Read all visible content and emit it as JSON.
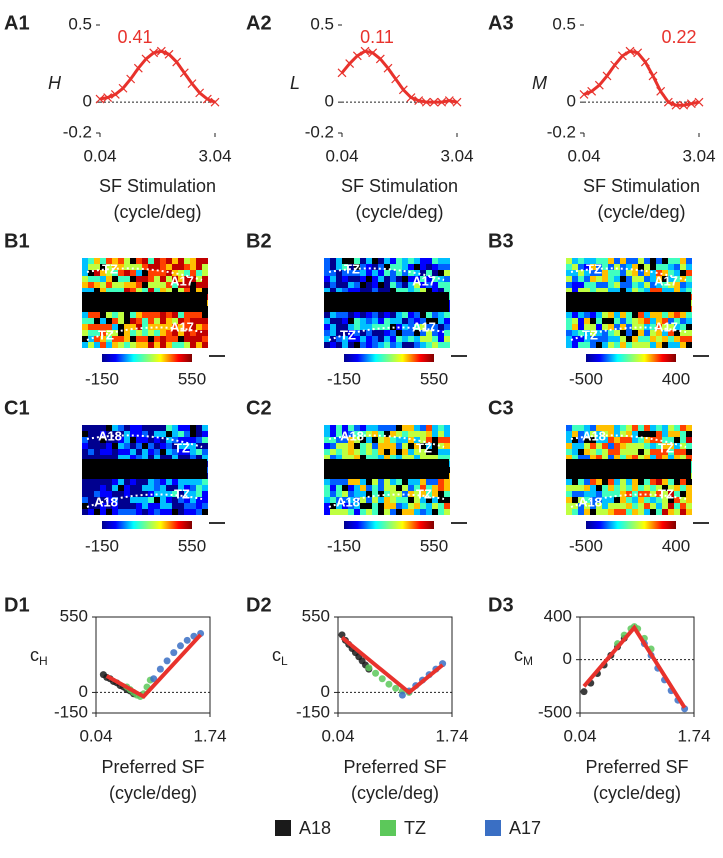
{
  "chart_data": [
    {
      "type": "line",
      "panel": "A1",
      "ylabel": "H",
      "annotation": "0.41",
      "xlabel": "SF Stimulation",
      "xunit": "(cycle/deg)",
      "xlim": [
        0.04,
        3.04
      ],
      "xticks": [
        0.04,
        3.04
      ],
      "ylim": [
        -0.2,
        0.5
      ],
      "yticks": [
        -0.2,
        0,
        0.5
      ],
      "x": [
        0.04,
        0.24,
        0.44,
        0.64,
        0.84,
        1.04,
        1.24,
        1.44,
        1.64,
        1.84,
        2.04,
        2.24,
        2.44,
        2.64,
        2.84,
        3.04
      ],
      "series": [
        {
          "color": "#e8322c",
          "values": [
            0.02,
            0.03,
            0.05,
            0.09,
            0.15,
            0.22,
            0.28,
            0.32,
            0.33,
            0.31,
            0.26,
            0.19,
            0.12,
            0.06,
            0.02,
            0.0
          ]
        }
      ]
    },
    {
      "type": "line",
      "panel": "A2",
      "ylabel": "L",
      "annotation": "0.11",
      "xlabel": "SF Stimulation",
      "xunit": "(cycle/deg)",
      "xlim": [
        0.04,
        3.04
      ],
      "xticks": [
        0.04,
        3.04
      ],
      "ylim": [
        -0.2,
        0.5
      ],
      "yticks": [
        -0.2,
        0,
        0.5
      ],
      "x": [
        0.04,
        0.24,
        0.44,
        0.64,
        0.84,
        1.04,
        1.24,
        1.44,
        1.64,
        1.84,
        2.04,
        2.24,
        2.44,
        2.64,
        2.84,
        3.04
      ],
      "series": [
        {
          "color": "#e8322c",
          "values": [
            0.19,
            0.25,
            0.3,
            0.33,
            0.32,
            0.28,
            0.22,
            0.15,
            0.08,
            0.03,
            0.01,
            0.0,
            0.0,
            0.0,
            0.01,
            0.0
          ]
        }
      ]
    },
    {
      "type": "line",
      "panel": "A3",
      "ylabel": "M",
      "annotation": "0.22",
      "xlabel": "SF Stimulation",
      "xunit": "(cycle/deg)",
      "xlim": [
        0.04,
        3.04
      ],
      "xticks": [
        0.04,
        3.04
      ],
      "ylim": [
        -0.2,
        0.5
      ],
      "yticks": [
        -0.2,
        0,
        0.5
      ],
      "x": [
        0.04,
        0.24,
        0.44,
        0.64,
        0.84,
        1.04,
        1.24,
        1.44,
        1.64,
        1.84,
        2.04,
        2.24,
        2.44,
        2.64,
        2.84,
        3.04
      ],
      "series": [
        {
          "color": "#e8322c",
          "values": [
            0.05,
            0.07,
            0.11,
            0.17,
            0.24,
            0.3,
            0.33,
            0.32,
            0.26,
            0.17,
            0.07,
            0.0,
            -0.02,
            -0.02,
            -0.01,
            0.0
          ]
        }
      ]
    },
    {
      "type": "scatter",
      "panel": "D1",
      "ylabel": "c",
      "ylabel_sub": "H",
      "xlabel": "Preferred SF",
      "xunit": "(cycle/deg)",
      "xlim": [
        0.04,
        1.74
      ],
      "xticks": [
        0.04,
        1.74
      ],
      "ylim": [
        -150,
        550
      ],
      "yticks": [
        -150,
        0,
        550
      ],
      "series": [
        {
          "name": "A18",
          "color": "#1a1a1a",
          "x": [
            0.15,
            0.2,
            0.25,
            0.3,
            0.35,
            0.4,
            0.45,
            0.5,
            0.55,
            0.6
          ],
          "values": [
            130,
            110,
            100,
            80,
            70,
            50,
            40,
            20,
            10,
            -10
          ]
        },
        {
          "name": "TZ",
          "color": "#5cc85a",
          "x": [
            0.5,
            0.55,
            0.6,
            0.65,
            0.7,
            0.75,
            0.8,
            0.85
          ],
          "values": [
            40,
            20,
            0,
            -20,
            -30,
            -10,
            40,
            90
          ]
        },
        {
          "name": "A17",
          "color": "#3a6fc4",
          "x": [
            0.9,
            1.0,
            1.1,
            1.2,
            1.3,
            1.4,
            1.5,
            1.6
          ],
          "values": [
            100,
            170,
            230,
            290,
            340,
            380,
            410,
            430
          ]
        }
      ],
      "fit": {
        "color": "#e8322c",
        "x": [
          0.2,
          0.75,
          1.6
        ],
        "values": [
          120,
          -30,
          420
        ]
      }
    },
    {
      "type": "scatter",
      "panel": "D2",
      "ylabel": "c",
      "ylabel_sub": "L",
      "xlabel": "Preferred SF",
      "xunit": "(cycle/deg)",
      "xlim": [
        0.04,
        1.74
      ],
      "xticks": [
        0.04,
        1.74
      ],
      "ylim": [
        -150,
        550
      ],
      "yticks": [
        -150,
        0,
        550
      ],
      "series": [
        {
          "name": "A18",
          "color": "#1a1a1a",
          "x": [
            0.1,
            0.15,
            0.2,
            0.25,
            0.3,
            0.35,
            0.4,
            0.45,
            0.5
          ],
          "values": [
            420,
            380,
            350,
            320,
            290,
            260,
            230,
            200,
            170
          ]
        },
        {
          "name": "TZ",
          "color": "#5cc85a",
          "x": [
            0.5,
            0.6,
            0.7,
            0.8,
            0.9,
            1.0,
            1.1
          ],
          "values": [
            180,
            140,
            100,
            60,
            30,
            10,
            0
          ]
        },
        {
          "name": "A17",
          "color": "#3a6fc4",
          "x": [
            1.0,
            1.1,
            1.2,
            1.3,
            1.4,
            1.5,
            1.6
          ],
          "values": [
            -20,
            10,
            50,
            90,
            130,
            170,
            210
          ]
        }
      ],
      "fit": {
        "color": "#e8322c",
        "x": [
          0.1,
          1.1,
          1.6
        ],
        "values": [
          400,
          0,
          200
        ]
      }
    },
    {
      "type": "scatter",
      "panel": "D3",
      "ylabel": "c",
      "ylabel_sub": "M",
      "xlabel": "Preferred SF",
      "xunit": "(cycle/deg)",
      "xlim": [
        0.04,
        1.74
      ],
      "xticks": [
        0.04,
        1.74
      ],
      "ylim": [
        -500,
        400
      ],
      "yticks": [
        -500,
        0,
        400
      ],
      "series": [
        {
          "name": "A18",
          "color": "#1a1a1a",
          "x": [
            0.1,
            0.2,
            0.3,
            0.4,
            0.5,
            0.6,
            0.7
          ],
          "values": [
            -300,
            -220,
            -130,
            -50,
            40,
            120,
            200
          ]
        },
        {
          "name": "TZ",
          "color": "#5cc85a",
          "x": [
            0.6,
            0.7,
            0.8,
            0.85,
            0.9,
            1.0,
            1.1
          ],
          "values": [
            150,
            230,
            290,
            310,
            290,
            200,
            100
          ]
        },
        {
          "name": "A17",
          "color": "#3a6fc4",
          "x": [
            1.0,
            1.1,
            1.2,
            1.3,
            1.4,
            1.5,
            1.6
          ],
          "values": [
            150,
            40,
            -80,
            -190,
            -290,
            -380,
            -460
          ]
        }
      ],
      "fit": {
        "color": "#e8322c",
        "x": [
          0.1,
          0.85,
          1.6
        ],
        "values": [
          -250,
          300,
          -450
        ]
      }
    }
  ],
  "maps": [
    {
      "panel": "B1",
      "regions": [
        "TZ",
        "A17",
        "TZ",
        "A17"
      ],
      "colorbar_ticks": [
        -150,
        550
      ]
    },
    {
      "panel": "B2",
      "regions": [
        "TZ",
        "A17",
        "TZ",
        "A17"
      ],
      "colorbar_ticks": [
        -150,
        550
      ]
    },
    {
      "panel": "B3",
      "regions": [
        "TZ",
        "A17",
        "TZ",
        "A17"
      ],
      "colorbar_ticks": [
        -500,
        400
      ]
    },
    {
      "panel": "C1",
      "regions": [
        "A18",
        "TZ",
        "A18",
        "TZ"
      ],
      "colorbar_ticks": [
        -150,
        550
      ]
    },
    {
      "panel": "C2",
      "regions": [
        "A18",
        "TZ",
        "A18",
        "TZ"
      ],
      "colorbar_ticks": [
        -150,
        550
      ]
    },
    {
      "panel": "C3",
      "regions": [
        "A18",
        "TZ",
        "A18",
        "TZ"
      ],
      "colorbar_ticks": [
        -500,
        400
      ]
    }
  ]
}
